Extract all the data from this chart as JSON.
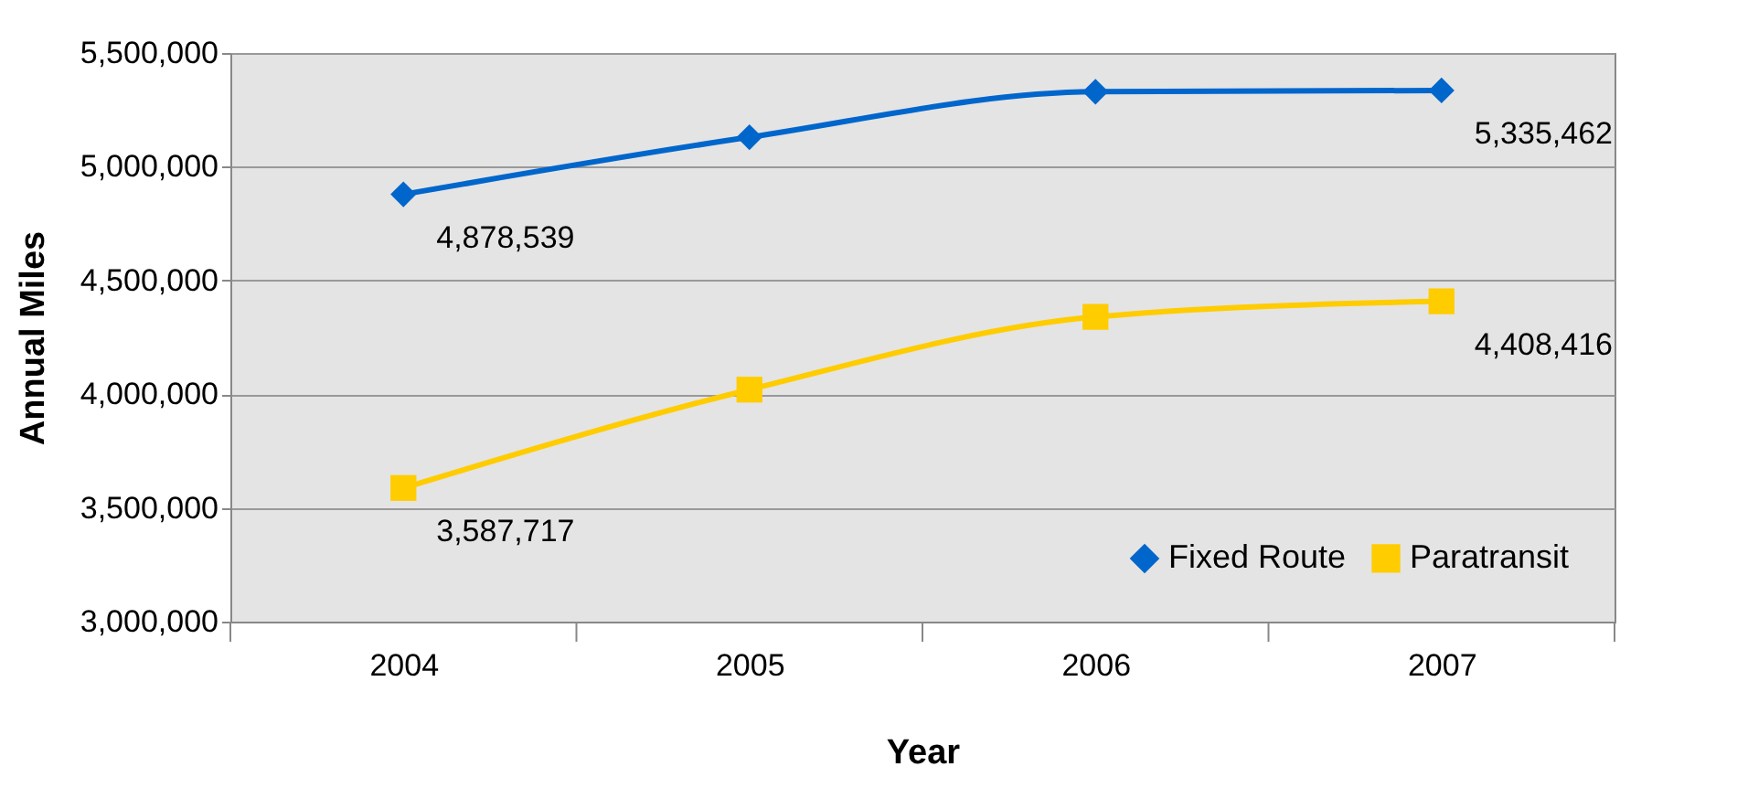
{
  "chart_data": {
    "type": "line",
    "xlabel": "Year",
    "ylabel": "Annual Miles",
    "categories": [
      "2004",
      "2005",
      "2006",
      "2007"
    ],
    "series": [
      {
        "name": "Fixed Route",
        "color": "#0066cc",
        "marker": "diamond",
        "values": [
          4878539,
          5130000,
          5330000,
          5335462
        ],
        "value_labels": [
          "4,878,539",
          null,
          null,
          "5,335,462"
        ]
      },
      {
        "name": "Paratransit",
        "color": "#ffcc00",
        "marker": "square",
        "values": [
          3587717,
          4020000,
          4340000,
          4408416
        ],
        "value_labels": [
          "3,587,717",
          null,
          null,
          "4,408,416"
        ]
      }
    ],
    "ylim": [
      3000000,
      5500000
    ],
    "yticks": [
      {
        "value": 3000000,
        "label": "3,000,000"
      },
      {
        "value": 3500000,
        "label": "3,500,000"
      },
      {
        "value": 4000000,
        "label": "4,000,000"
      },
      {
        "value": 4500000,
        "label": "4,500,000"
      },
      {
        "value": 5000000,
        "label": "5,000,000"
      },
      {
        "value": 5500000,
        "label": "5,500,000"
      }
    ],
    "grid": "y",
    "legend": "bottom right",
    "line_style": "solid"
  }
}
